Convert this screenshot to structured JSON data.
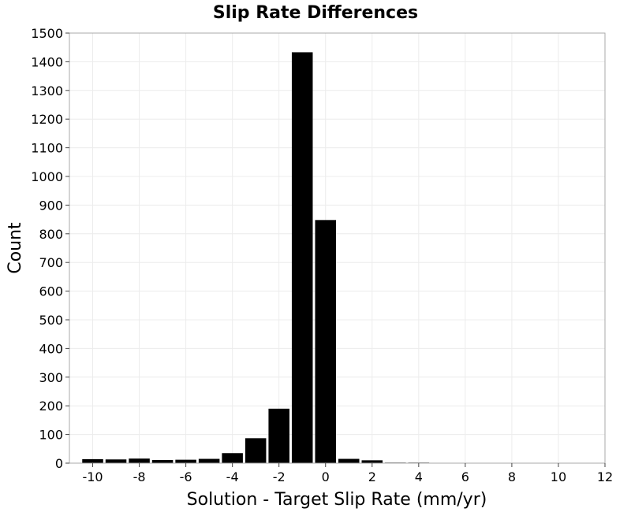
{
  "chart_data": {
    "type": "bar",
    "title": "Slip Rate Differences",
    "xlabel": "Solution - Target Slip Rate (mm/yr)",
    "ylabel": "Count",
    "xlim": [
      -11,
      12
    ],
    "ylim": [
      0,
      1500
    ],
    "xticks": [
      -10,
      -8,
      -6,
      -4,
      -2,
      0,
      2,
      4,
      6,
      8,
      10,
      12
    ],
    "yticks": [
      0,
      100,
      200,
      300,
      400,
      500,
      600,
      700,
      800,
      900,
      1000,
      1100,
      1200,
      1300,
      1400,
      1500
    ],
    "bin_width": 1,
    "x": [
      -10,
      -9,
      -8,
      -7,
      -6,
      -5,
      -4,
      -3,
      -2,
      -1,
      0,
      1,
      2,
      3,
      4
    ],
    "values": [
      14,
      13,
      16,
      11,
      12,
      15,
      35,
      87,
      190,
      1433,
      848,
      15,
      10,
      2,
      2
    ],
    "bar_color": "#000000",
    "grid": true
  }
}
